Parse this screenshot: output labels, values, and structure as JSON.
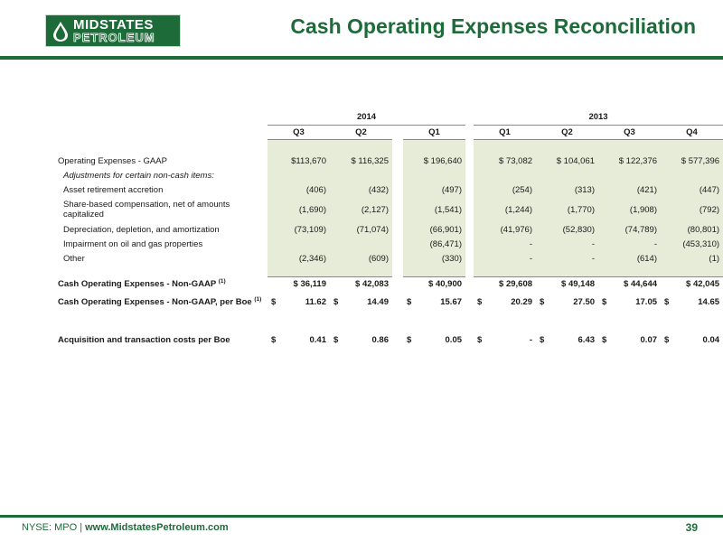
{
  "header": {
    "logo_line1": "MIDSTATES",
    "logo_line2": "PETROLEUM",
    "title": "Cash Operating Expenses Reconciliation"
  },
  "table": {
    "years": [
      {
        "label": "2014"
      },
      {
        "label": "2013"
      }
    ],
    "quarters": [
      "Q3",
      "Q2",
      "Q1",
      "Q1",
      "Q2",
      "Q3",
      "Q4"
    ],
    "rows": [
      {
        "label": "Operating Expenses - GAAP",
        "values": [
          "$113,670",
          "$ 116,325",
          "$ 196,640",
          "$ 73,082",
          "$ 104,061",
          "$ 122,376",
          "$ 577,396"
        ]
      },
      {
        "label": "Adjustments for certain non-cash items:",
        "values": [
          "",
          "",
          "",
          "",
          "",
          "",
          ""
        ]
      },
      {
        "label": "Asset retirement accretion",
        "values": [
          "(406)",
          "(432)",
          "(497)",
          "(254)",
          "(313)",
          "(421)",
          "(447)"
        ]
      },
      {
        "label": "Share-based compensation, net of amounts capitalized",
        "values": [
          "(1,690)",
          "(2,127)",
          "(1,541)",
          "(1,244)",
          "(1,770)",
          "(1,908)",
          "(792)"
        ]
      },
      {
        "label": "Depreciation, depletion, and amortization",
        "values": [
          "(73,109)",
          "(71,074)",
          "(66,901)",
          "(41,976)",
          "(52,830)",
          "(74,789)",
          "(80,801)"
        ]
      },
      {
        "label": "Impairment on oil and gas properties",
        "values": [
          "",
          "",
          "(86,471)",
          "-",
          "-",
          "-",
          "(453,310)"
        ]
      },
      {
        "label": "Other",
        "values": [
          "(2,346)",
          "(609)",
          "(330)",
          "-",
          "-",
          "(614)",
          "(1)"
        ]
      }
    ],
    "non_gaap": {
      "label": "Cash Operating Expenses - Non-GAAP",
      "note": "(1)",
      "values": [
        "$ 36,119",
        "$ 42,083",
        "$ 40,900",
        "$ 29,608",
        "$ 49,148",
        "$ 44,644",
        "$ 42,045"
      ]
    },
    "per_boe": {
      "label": "Cash Operating Expenses - Non-GAAP, per Boe",
      "note": "(1)",
      "currency": "$",
      "values": [
        "11.62",
        "14.49",
        "15.67",
        "20.29",
        "27.50",
        "17.05",
        "14.65"
      ]
    },
    "acquisition": {
      "label": "Acquisition and transaction costs per Boe",
      "currency": "$",
      "values": [
        "0.41",
        "0.86",
        "0.05",
        "-",
        "6.43",
        "0.07",
        "0.04"
      ]
    }
  },
  "footer": {
    "ticker": "NYSE: MPO",
    "separator": "|",
    "url": "www.MidstatesPetroleum.com",
    "page_number": "39"
  },
  "colors": {
    "brand_green": "#1e6b3a",
    "row_shade": "#e6ecd8"
  }
}
